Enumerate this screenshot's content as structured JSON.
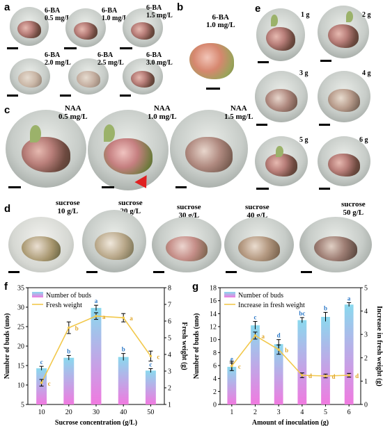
{
  "panels": {
    "a": {
      "label": "a",
      "treatments": [
        {
          "line1": "6-BA",
          "line2": "0.5 mg/L"
        },
        {
          "line1": "6-BA",
          "line2": "1.0 mg/L"
        },
        {
          "line1": "6-BA",
          "line2": "1.5 mg/L"
        },
        {
          "line1": "6-BA",
          "line2": "2.0 mg/L"
        },
        {
          "line1": "6-BA",
          "line2": "2.5 mg/L"
        },
        {
          "line1": "6-BA",
          "line2": "3.0 mg/L"
        }
      ]
    },
    "b": {
      "label": "b",
      "line1": "6-BA",
      "line2": "1.0 mg/L"
    },
    "c": {
      "label": "c",
      "treatments": [
        {
          "line1": "NAA",
          "line2": "0.5 mg/L"
        },
        {
          "line1": "NAA",
          "line2": "1.0 mg/L"
        },
        {
          "line1": "NAA",
          "line2": "1.5 mg/L"
        }
      ]
    },
    "d": {
      "label": "d",
      "treatments": [
        {
          "line1": "sucrose",
          "line2": "10 g/L"
        },
        {
          "line1": "sucrose",
          "line2": "20 g/L"
        },
        {
          "line1": "sucrose",
          "line2": "30 g/L"
        },
        {
          "line1": "sucrose",
          "line2": "40 g/L"
        },
        {
          "line1": "sucrose",
          "line2": "50 g/L"
        }
      ]
    },
    "e": {
      "label": "e",
      "treatments": [
        "1 g",
        "2 g",
        "3 g",
        "4 g",
        "5 g",
        "6 g"
      ]
    },
    "f": {
      "label": "f"
    },
    "g": {
      "label": "g"
    }
  },
  "colors": {
    "bar_top": "#8ad9ee",
    "bar_bottom": "#f07ae0",
    "line": "#f2c84b",
    "letters_bar": "#2d79c7",
    "letters_line": "#e0a62a"
  },
  "chart_data": [
    {
      "id": "f",
      "type": "bar",
      "categories": [
        "10",
        "20",
        "30",
        "40",
        "50"
      ],
      "xlabel": "Sucrose concentration (g/L)",
      "ylabel": "Number of buds (uno)",
      "y2label": "Fresh weight (g)",
      "ylim": [
        5,
        35
      ],
      "y2lim": [
        1,
        8
      ],
      "yticks": [
        "5",
        "10",
        "15",
        "20",
        "25",
        "30",
        "35"
      ],
      "y2ticks": [
        "1",
        "2",
        "3",
        "4",
        "5",
        "6",
        "7",
        "8"
      ],
      "legend_position": "top-left",
      "series": [
        {
          "name": "Number of buds",
          "kind": "bar",
          "values": [
            14.3,
            17.0,
            29.8,
            17.2,
            13.7
          ],
          "errors": [
            0.5,
            0.6,
            0.7,
            0.9,
            0.5
          ],
          "letters": [
            "c",
            "b",
            "a",
            "b",
            "c"
          ]
        },
        {
          "name": "Fresh weight",
          "kind": "line",
          "axis": "right",
          "values": [
            2.3,
            5.6,
            6.3,
            6.2,
            3.9
          ],
          "errors": [
            0.2,
            0.35,
            0.2,
            0.25,
            0.3
          ],
          "letters": [
            "c",
            "b",
            "a",
            "a",
            "c"
          ]
        }
      ]
    },
    {
      "id": "g",
      "type": "bar",
      "categories": [
        "1",
        "2",
        "3",
        "4",
        "5",
        "6"
      ],
      "xlabel": "Amount of inoculation (g)",
      "ylabel": "Number of buds (uno)",
      "y2label": "Increase in fresh weight (g)",
      "ylim": [
        0,
        18
      ],
      "y2lim": [
        0,
        5
      ],
      "yticks": [
        "0",
        "2",
        "4",
        "6",
        "8",
        "10",
        "12",
        "14",
        "16",
        "18"
      ],
      "y2ticks": [
        "0",
        "1",
        "2",
        "3",
        "4",
        "5"
      ],
      "legend_position": "top-left",
      "series": [
        {
          "name": "Number of buds",
          "kind": "bar",
          "values": [
            5.8,
            12.2,
            9.3,
            13.0,
            13.5,
            15.4
          ],
          "errors": [
            0.6,
            0.6,
            0.7,
            0.4,
            0.7,
            0.3
          ],
          "letters": [
            "e",
            "c",
            "d",
            "bc",
            "b",
            "a"
          ]
        },
        {
          "name": "Increase in fresh weight",
          "kind": "line",
          "axis": "right",
          "values": [
            1.65,
            2.95,
            2.35,
            1.25,
            1.22,
            1.25
          ],
          "errors": [
            0.2,
            0.15,
            0.2,
            0.1,
            0.08,
            0.08
          ],
          "letters": [
            "c",
            "a",
            "b",
            "d",
            "d",
            "d"
          ]
        }
      ]
    }
  ]
}
